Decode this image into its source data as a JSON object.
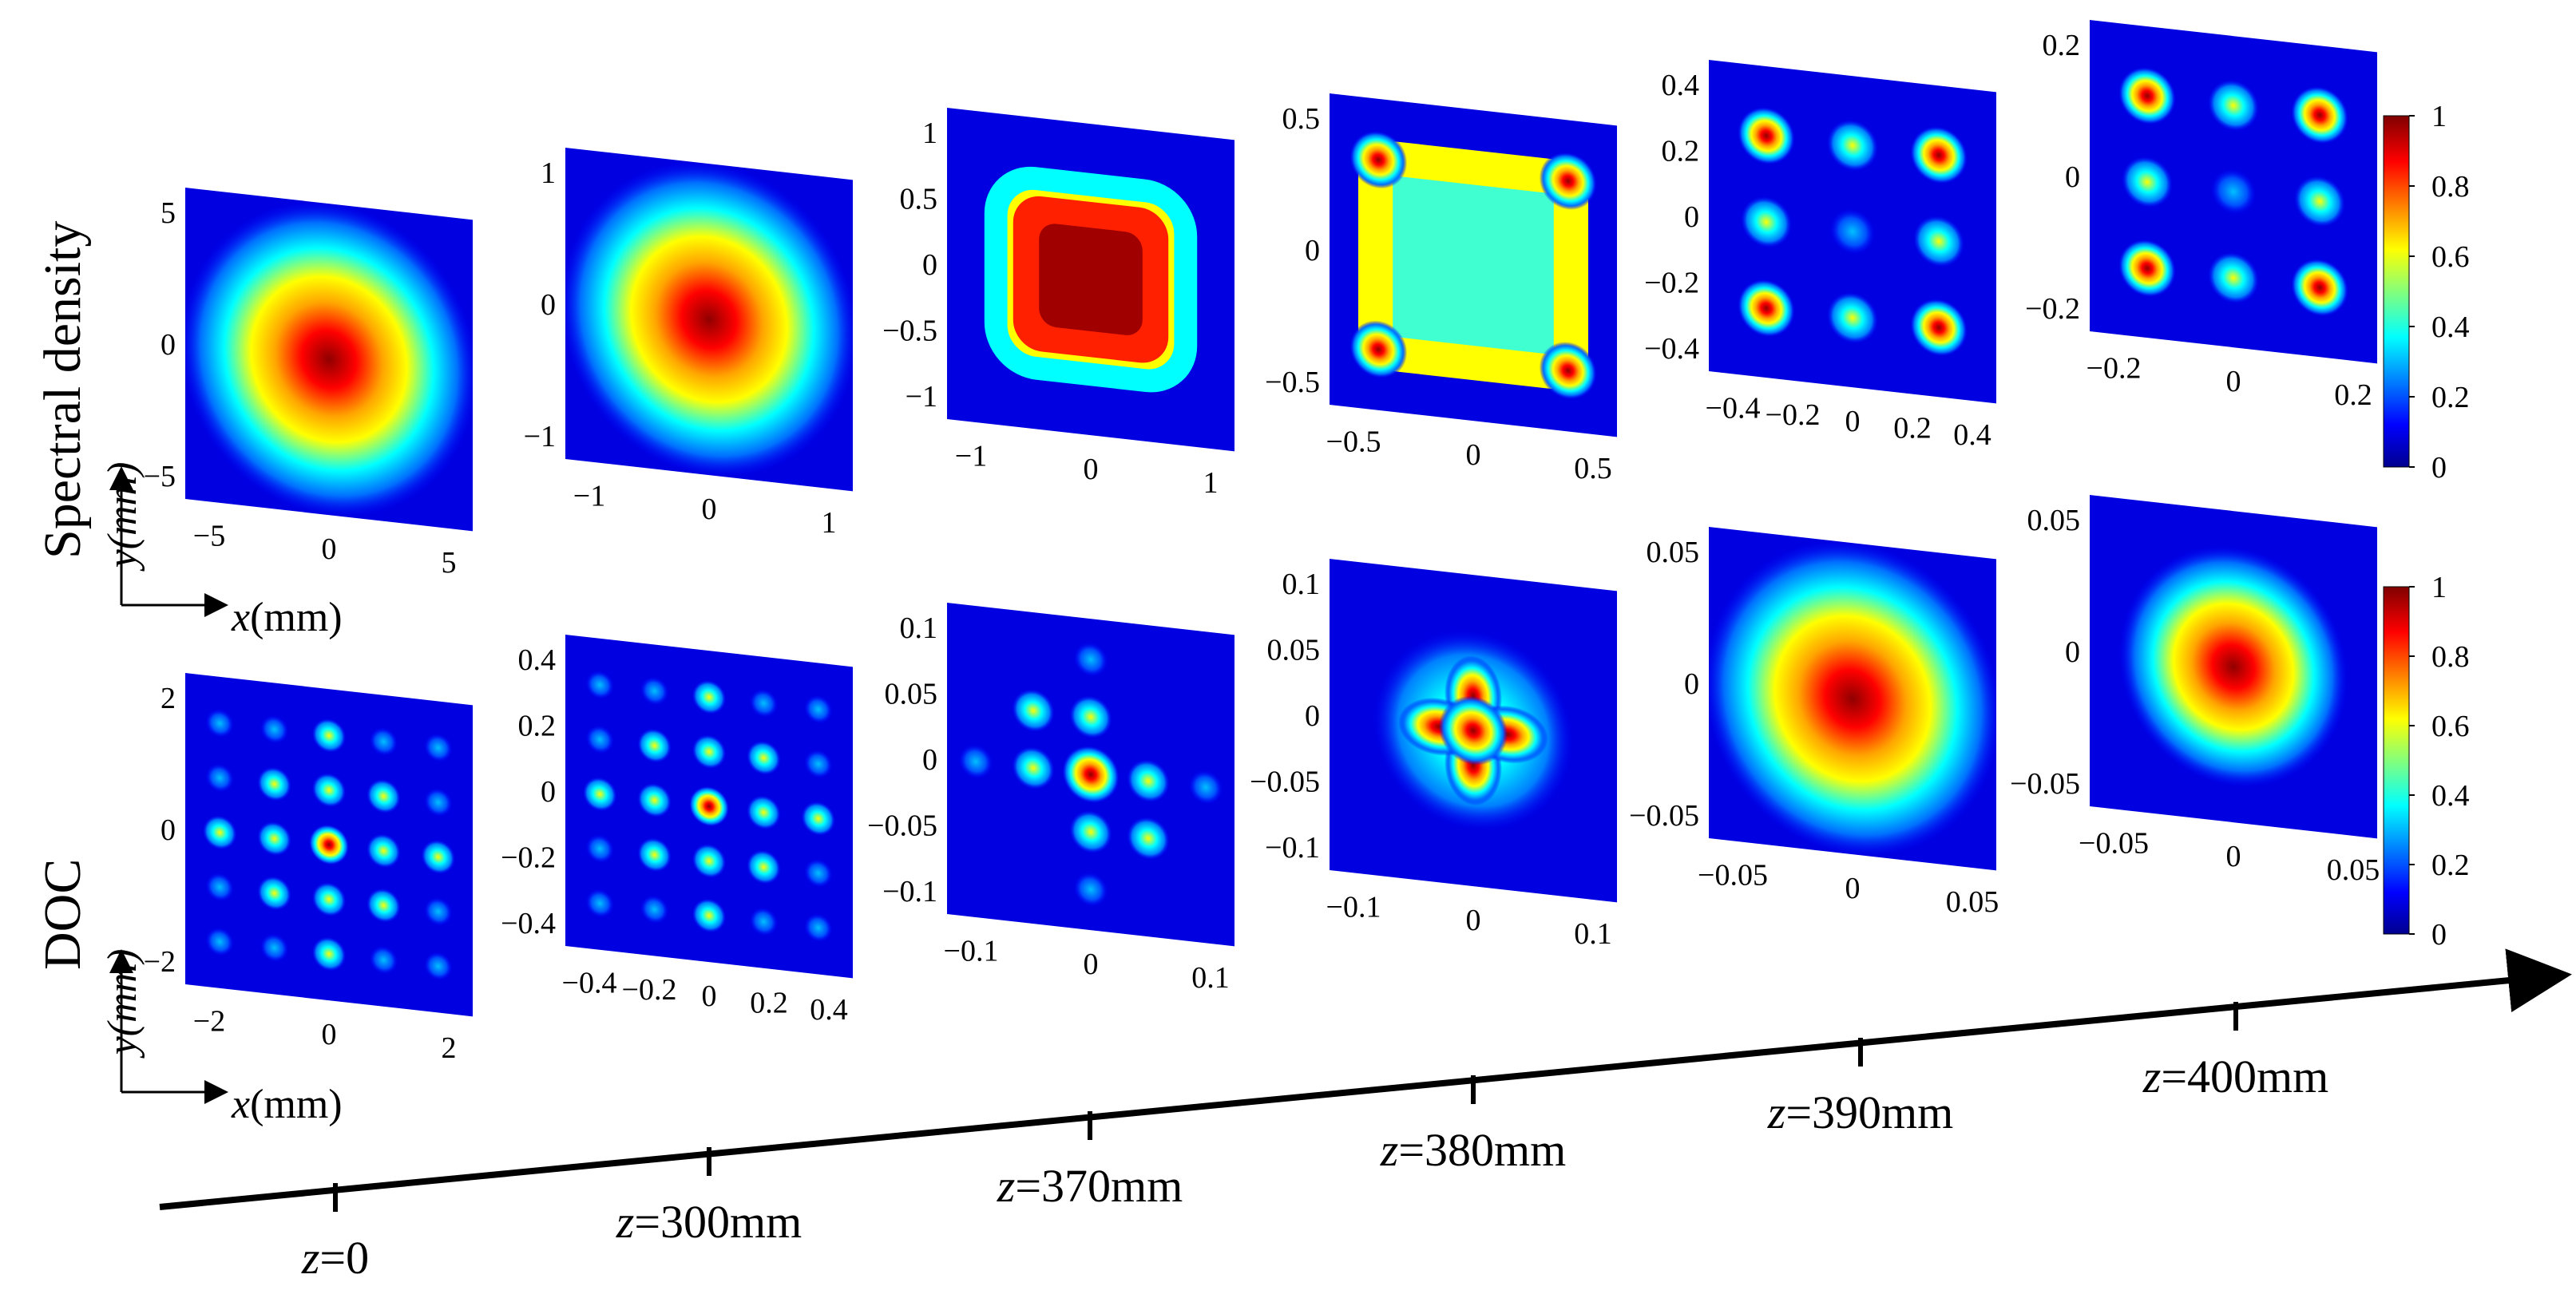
{
  "row_labels": {
    "top": "Spectral density",
    "bottom": "DOC"
  },
  "axes": {
    "x_symbol": "x",
    "y_symbol": "y",
    "unit": "(mm)",
    "z_symbol": "z"
  },
  "stages": [
    {
      "z_value": "=0",
      "top": {
        "xticks": [
          "−5",
          "0",
          "5"
        ],
        "yticks": [
          "5",
          "0",
          "−5"
        ],
        "pattern": "gaussian"
      },
      "bottom": {
        "xticks": [
          "−2",
          "0",
          "2"
        ],
        "yticks": [
          "2",
          "0",
          "−2"
        ],
        "pattern": "lattice_dense"
      }
    },
    {
      "z_value": "=300mm",
      "top": {
        "xticks": [
          "−1",
          "0",
          "1"
        ],
        "yticks": [
          "1",
          "0",
          "−1"
        ],
        "pattern": "gaussian"
      },
      "bottom": {
        "xticks": [
          "−0.4",
          "−0.2",
          "0",
          "0.2",
          "0.4"
        ],
        "yticks": [
          "0.4",
          "0.2",
          "0",
          "−0.2",
          "−0.4"
        ],
        "pattern": "lattice_dense"
      }
    },
    {
      "z_value": "=370mm",
      "top": {
        "xticks": [
          "−1",
          "0",
          "1"
        ],
        "yticks": [
          "1",
          "0.5",
          "0",
          "−0.5",
          "−1"
        ],
        "pattern": "flat_square"
      },
      "bottom": {
        "xticks": [
          "−0.1",
          "0",
          "0.1"
        ],
        "yticks": [
          "0.1",
          "0.05",
          "0",
          "−0.05",
          "−0.1"
        ],
        "pattern": "cross"
      }
    },
    {
      "z_value": "=380mm",
      "top": {
        "xticks": [
          "−0.5",
          "0",
          "0.5"
        ],
        "yticks": [
          "0.5",
          "0",
          "−0.5"
        ],
        "pattern": "four_lobe_ring"
      },
      "bottom": {
        "xticks": [
          "−0.1",
          "0",
          "0.1"
        ],
        "yticks": [
          "0.1",
          "0.05",
          "0",
          "−0.05",
          "−0.1"
        ],
        "pattern": "star"
      }
    },
    {
      "z_value": "=390mm",
      "top": {
        "xticks": [
          "−0.4",
          "−0.2",
          "0",
          "0.2",
          "0.4"
        ],
        "yticks": [
          "0.4",
          "0.2",
          "0",
          "−0.2",
          "−0.4"
        ],
        "pattern": "array_3x3_strong"
      },
      "bottom": {
        "xticks": [
          "−0.05",
          "0",
          "0.05"
        ],
        "yticks": [
          "0.05",
          "0",
          "−0.05"
        ],
        "pattern": "gaussian"
      }
    },
    {
      "z_value": "=400mm",
      "top": {
        "xticks": [
          "−0.2",
          "0",
          "0.2"
        ],
        "yticks": [
          "0.2",
          "0",
          "−0.2"
        ],
        "pattern": "array_3x3"
      },
      "bottom": {
        "xticks": [
          "−0.05",
          "0",
          "0.05"
        ],
        "yticks": [
          "0.05",
          "0",
          "−0.05"
        ],
        "pattern": "gaussian_small"
      }
    }
  ],
  "colorbar": {
    "ticks": [
      "1",
      "0.8",
      "0.6",
      "0.4",
      "0.2",
      "0"
    ],
    "colormap": [
      "#00008f",
      "#0000ff",
      "#00ffff",
      "#ffff00",
      "#ff0000",
      "#800000"
    ]
  }
}
